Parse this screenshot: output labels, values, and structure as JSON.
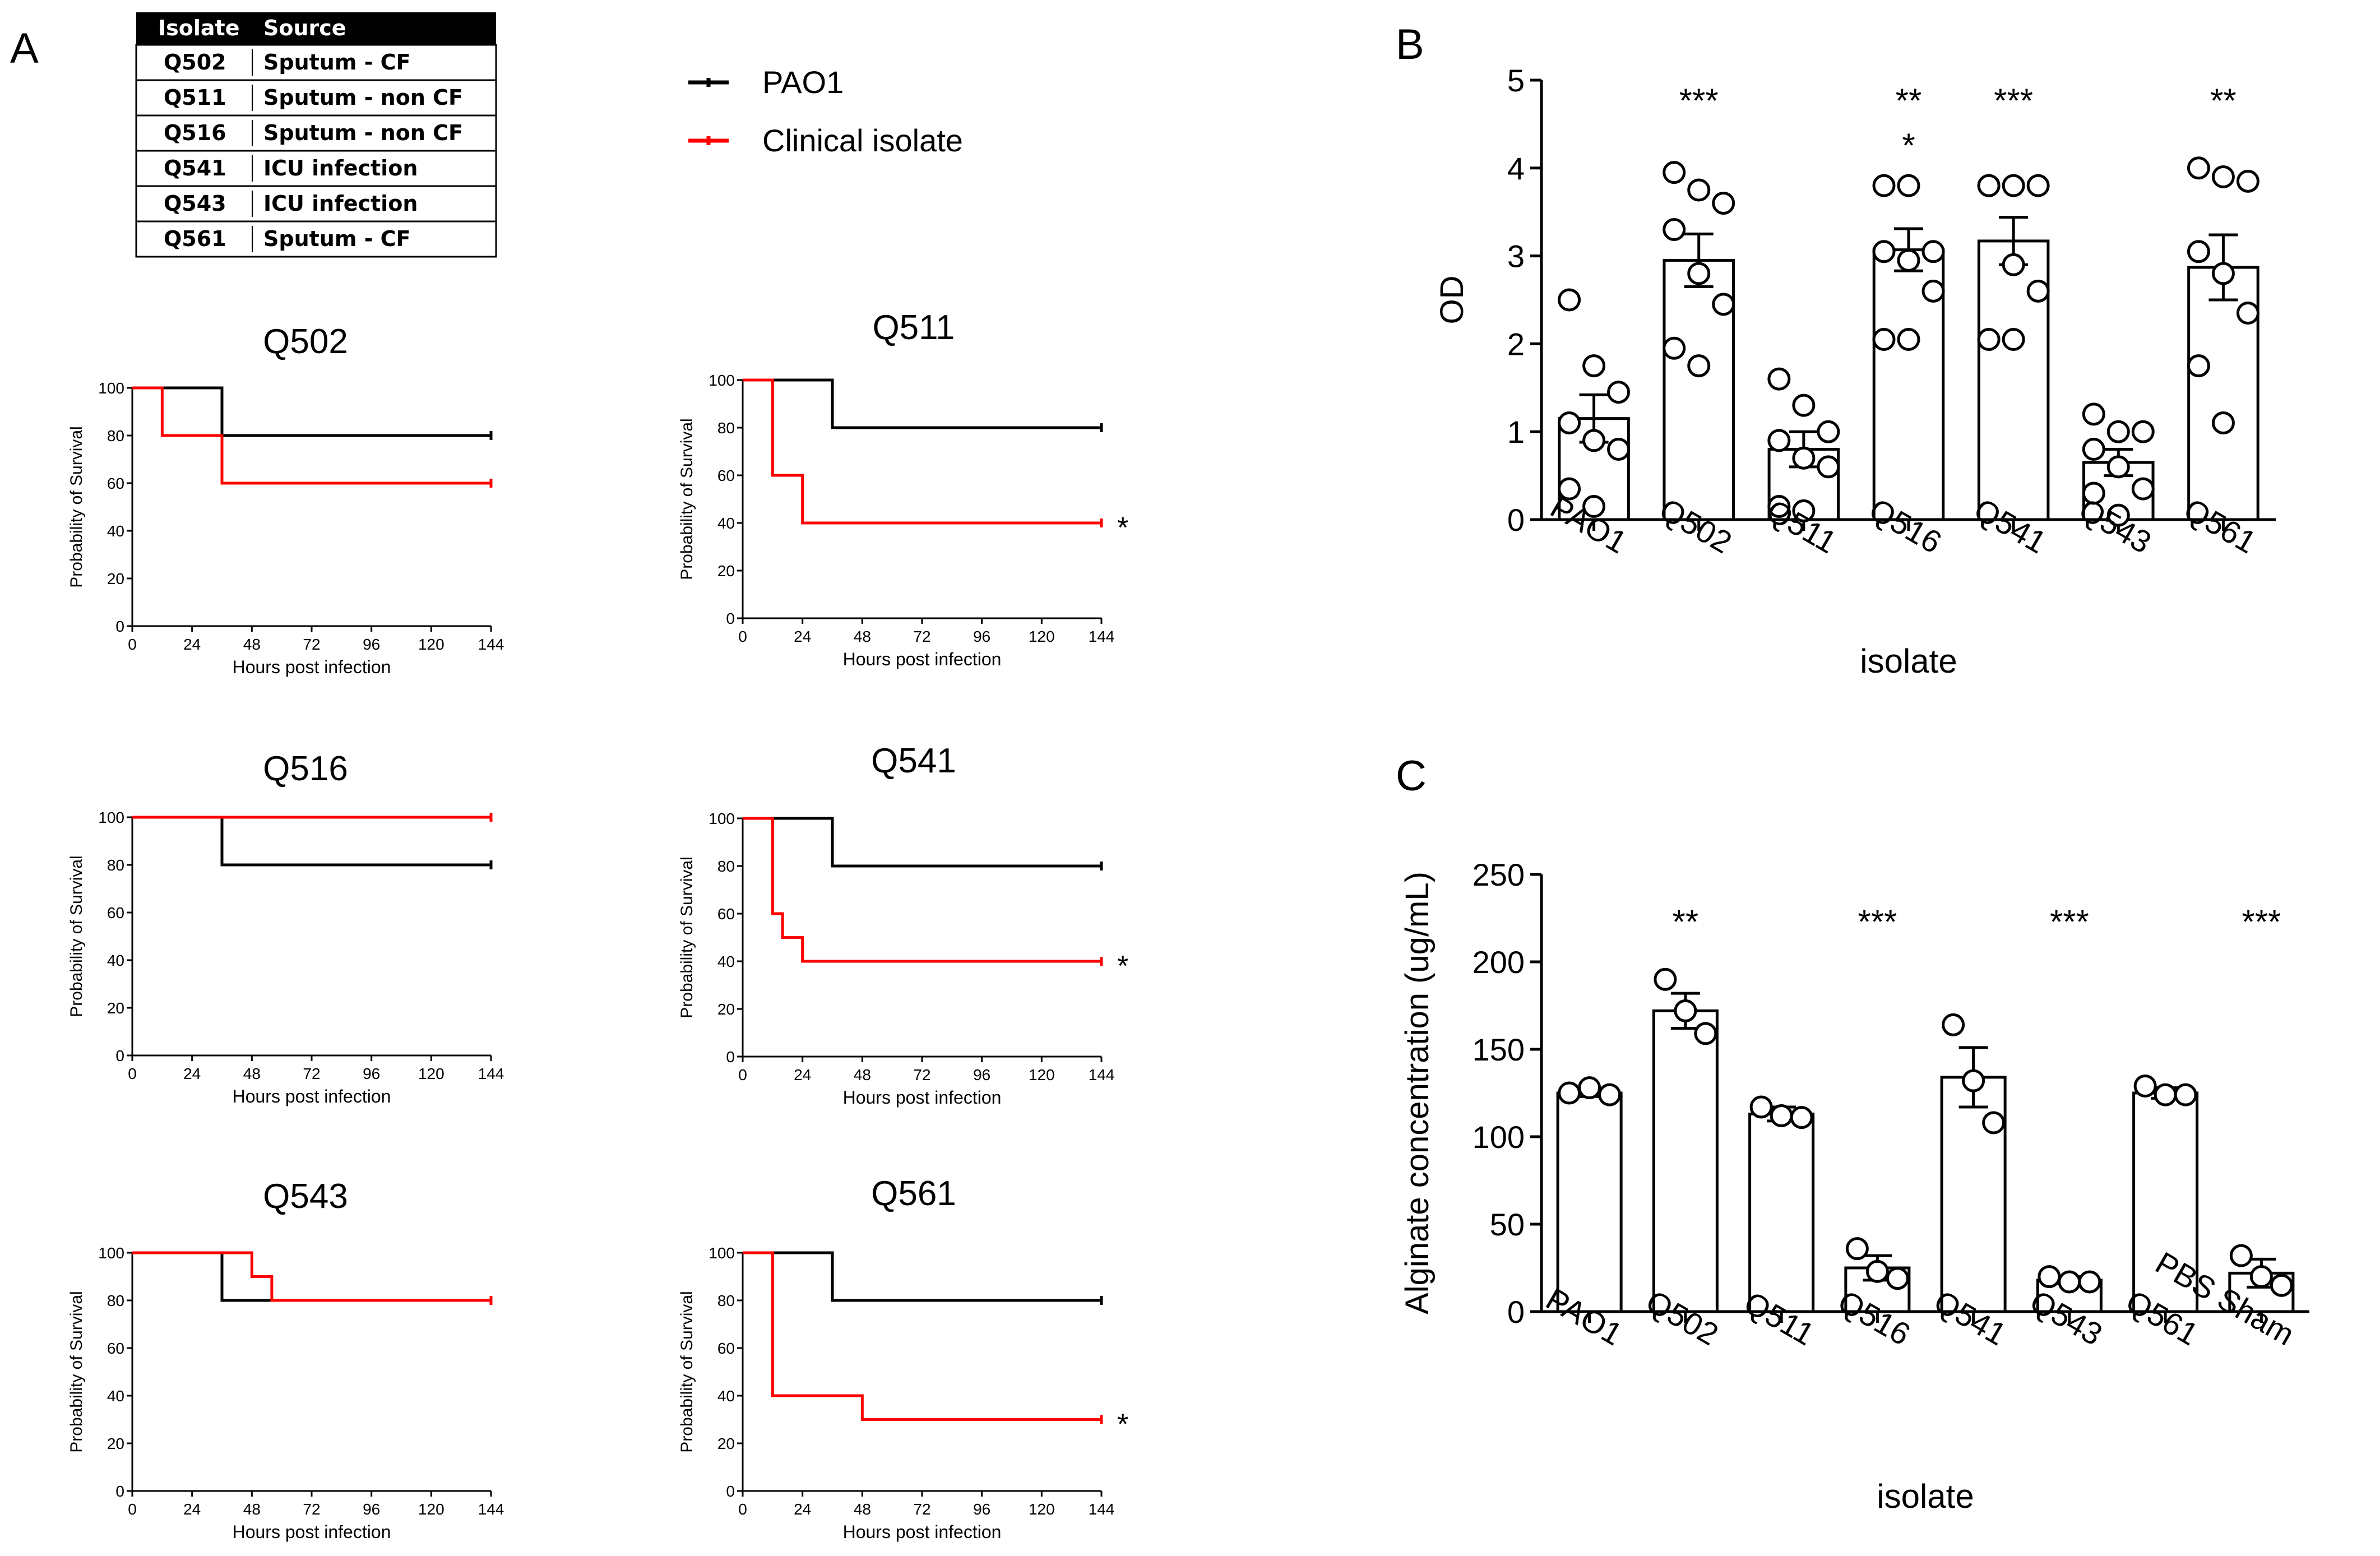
{
  "panel_labels": {
    "a": "A",
    "b": "B",
    "c": "C"
  },
  "colors": {
    "pao1": "#000000",
    "clinical": "#ff0000",
    "table_header_bg": "#000000",
    "table_header_text": "#ffffff"
  },
  "legend": {
    "pao1": "PAO1",
    "clinical": "Clinical isolate"
  },
  "isolate_table": {
    "headers": [
      "Isolate",
      "Source"
    ],
    "rows": [
      [
        "Q502",
        "Sputum - CF"
      ],
      [
        "Q511",
        "Sputum - non CF"
      ],
      [
        "Q516",
        "Sputum - non CF"
      ],
      [
        "Q541",
        "ICU infection"
      ],
      [
        "Q543",
        "ICU infection"
      ],
      [
        "Q561",
        "Sputum - CF"
      ]
    ]
  },
  "chart_data": [
    {
      "type": "line",
      "subtype": "kaplan-meier",
      "title": "Q502",
      "xlabel": "Hours post infection",
      "ylabel": "Probability of Survival",
      "xlim": [
        0,
        144
      ],
      "ylim": [
        0,
        100
      ],
      "xticks": [
        0,
        24,
        48,
        72,
        96,
        120,
        144
      ],
      "yticks": [
        0,
        20,
        40,
        60,
        80,
        100
      ],
      "series": [
        {
          "name": "PAO1",
          "x": [
            0,
            36,
            144
          ],
          "y": [
            100,
            80,
            80
          ]
        },
        {
          "name": "Clinical isolate",
          "x": [
            0,
            12,
            36,
            144
          ],
          "y": [
            100,
            80,
            60,
            60
          ]
        }
      ],
      "significance": ""
    },
    {
      "type": "line",
      "subtype": "kaplan-meier",
      "title": "Q511",
      "xlabel": "Hours post infection",
      "ylabel": "Probability of Survival",
      "xlim": [
        0,
        144
      ],
      "ylim": [
        0,
        100
      ],
      "xticks": [
        0,
        24,
        48,
        72,
        96,
        120,
        144
      ],
      "yticks": [
        0,
        20,
        40,
        60,
        80,
        100
      ],
      "series": [
        {
          "name": "PAO1",
          "x": [
            0,
            36,
            144
          ],
          "y": [
            100,
            80,
            80
          ]
        },
        {
          "name": "Clinical isolate",
          "x": [
            0,
            12,
            24,
            144
          ],
          "y": [
            100,
            60,
            40,
            40
          ]
        }
      ],
      "significance": "*"
    },
    {
      "type": "line",
      "subtype": "kaplan-meier",
      "title": "Q516",
      "xlabel": "Hours post infection",
      "ylabel": "Probability of Survival",
      "xlim": [
        0,
        144
      ],
      "ylim": [
        0,
        100
      ],
      "xticks": [
        0,
        24,
        48,
        72,
        96,
        120,
        144
      ],
      "yticks": [
        0,
        20,
        40,
        60,
        80,
        100
      ],
      "series": [
        {
          "name": "PAO1",
          "x": [
            0,
            36,
            144
          ],
          "y": [
            100,
            80,
            80
          ]
        },
        {
          "name": "Clinical isolate",
          "x": [
            0,
            144
          ],
          "y": [
            100,
            100
          ]
        }
      ],
      "significance": ""
    },
    {
      "type": "line",
      "subtype": "kaplan-meier",
      "title": "Q541",
      "xlabel": "Hours post infection",
      "ylabel": "Probability of Survival",
      "xlim": [
        0,
        144
      ],
      "ylim": [
        0,
        100
      ],
      "xticks": [
        0,
        24,
        48,
        72,
        96,
        120,
        144
      ],
      "yticks": [
        0,
        20,
        40,
        60,
        80,
        100
      ],
      "series": [
        {
          "name": "PAO1",
          "x": [
            0,
            36,
            144
          ],
          "y": [
            100,
            80,
            80
          ]
        },
        {
          "name": "Clinical isolate",
          "x": [
            0,
            12,
            16,
            24,
            144
          ],
          "y": [
            100,
            60,
            50,
            40,
            40
          ]
        }
      ],
      "significance": "*"
    },
    {
      "type": "line",
      "subtype": "kaplan-meier",
      "title": "Q543",
      "xlabel": "Hours post infection",
      "ylabel": "Probability of Survival",
      "xlim": [
        0,
        144
      ],
      "ylim": [
        0,
        100
      ],
      "xticks": [
        0,
        24,
        48,
        72,
        96,
        120,
        144
      ],
      "yticks": [
        0,
        20,
        40,
        60,
        80,
        100
      ],
      "series": [
        {
          "name": "PAO1",
          "x": [
            0,
            36,
            144
          ],
          "y": [
            100,
            80,
            80
          ]
        },
        {
          "name": "Clinical isolate",
          "x": [
            0,
            48,
            56,
            144
          ],
          "y": [
            100,
            90,
            80,
            80
          ]
        }
      ],
      "significance": ""
    },
    {
      "type": "line",
      "subtype": "kaplan-meier",
      "title": "Q561",
      "xlabel": "Hours post infection",
      "ylabel": "Probability of Survival",
      "xlim": [
        0,
        144
      ],
      "ylim": [
        0,
        100
      ],
      "xticks": [
        0,
        24,
        48,
        72,
        96,
        120,
        144
      ],
      "yticks": [
        0,
        20,
        40,
        60,
        80,
        100
      ],
      "series": [
        {
          "name": "PAO1",
          "x": [
            0,
            36,
            144
          ],
          "y": [
            100,
            80,
            80
          ]
        },
        {
          "name": "Clinical isolate",
          "x": [
            0,
            12,
            48,
            144
          ],
          "y": [
            100,
            40,
            30,
            30
          ]
        }
      ],
      "significance": "*"
    },
    {
      "type": "bar",
      "subtype": "bar-with-scatter",
      "title": "",
      "xlabel": "isolate",
      "ylabel": "OD",
      "ylim": [
        0,
        5
      ],
      "yticks": [
        0,
        1,
        2,
        3,
        4,
        5
      ],
      "categories": [
        "PAO1",
        "Q502",
        "Q511",
        "Q516",
        "Q541",
        "Q543",
        "Q561"
      ],
      "values": [
        1.15,
        2.95,
        0.8,
        3.07,
        3.17,
        0.65,
        2.87
      ],
      "errors": [
        0.27,
        0.3,
        0.2,
        0.24,
        0.27,
        0.15,
        0.37
      ],
      "points": [
        [
          2.5,
          1.75,
          1.45,
          1.1,
          0.9,
          0.8,
          0.35,
          0.15
        ],
        [
          3.95,
          3.75,
          3.6,
          3.3,
          2.8,
          2.45,
          1.95,
          1.75
        ],
        [
          1.6,
          1.3,
          1.0,
          0.9,
          0.7,
          0.6,
          0.15,
          0.1
        ],
        [
          3.8,
          3.8,
          3.05,
          3.05,
          2.95,
          2.6,
          2.05,
          2.05
        ],
        [
          3.8,
          3.8,
          3.8,
          3.8,
          2.9,
          2.6,
          2.05,
          2.05
        ],
        [
          1.2,
          1.0,
          1.0,
          0.8,
          0.6,
          0.35,
          0.3,
          0.05
        ],
        [
          4.0,
          3.9,
          3.85,
          3.05,
          2.8,
          2.35,
          1.75,
          1.1
        ]
      ],
      "significance": [
        "",
        "***",
        "",
        "**\n*",
        "***",
        "",
        "**"
      ]
    },
    {
      "type": "bar",
      "subtype": "bar-with-scatter",
      "title": "",
      "xlabel": "isolate",
      "ylabel": "Alginate concentration (ug/mL)",
      "ylim": [
        0,
        250
      ],
      "yticks": [
        0,
        50,
        100,
        150,
        200,
        250
      ],
      "categories": [
        "PAO1",
        "Q502",
        "Q511",
        "Q516",
        "Q541",
        "Q543",
        "Q561",
        "PBS Sham"
      ],
      "values": [
        125,
        172,
        113,
        25,
        134,
        18,
        125,
        22
      ],
      "errors": [
        2,
        10,
        4,
        7,
        17,
        2,
        3,
        8
      ],
      "points": [
        [
          125,
          128,
          124
        ],
        [
          190,
          172,
          159
        ],
        [
          117,
          112,
          111
        ],
        [
          36,
          23,
          19
        ],
        [
          164,
          132,
          108
        ],
        [
          20,
          17,
          17
        ],
        [
          129,
          124,
          124
        ],
        [
          32,
          20,
          15
        ]
      ],
      "significance": [
        "",
        "**",
        "",
        "***",
        "",
        "***",
        "",
        "***"
      ]
    }
  ]
}
